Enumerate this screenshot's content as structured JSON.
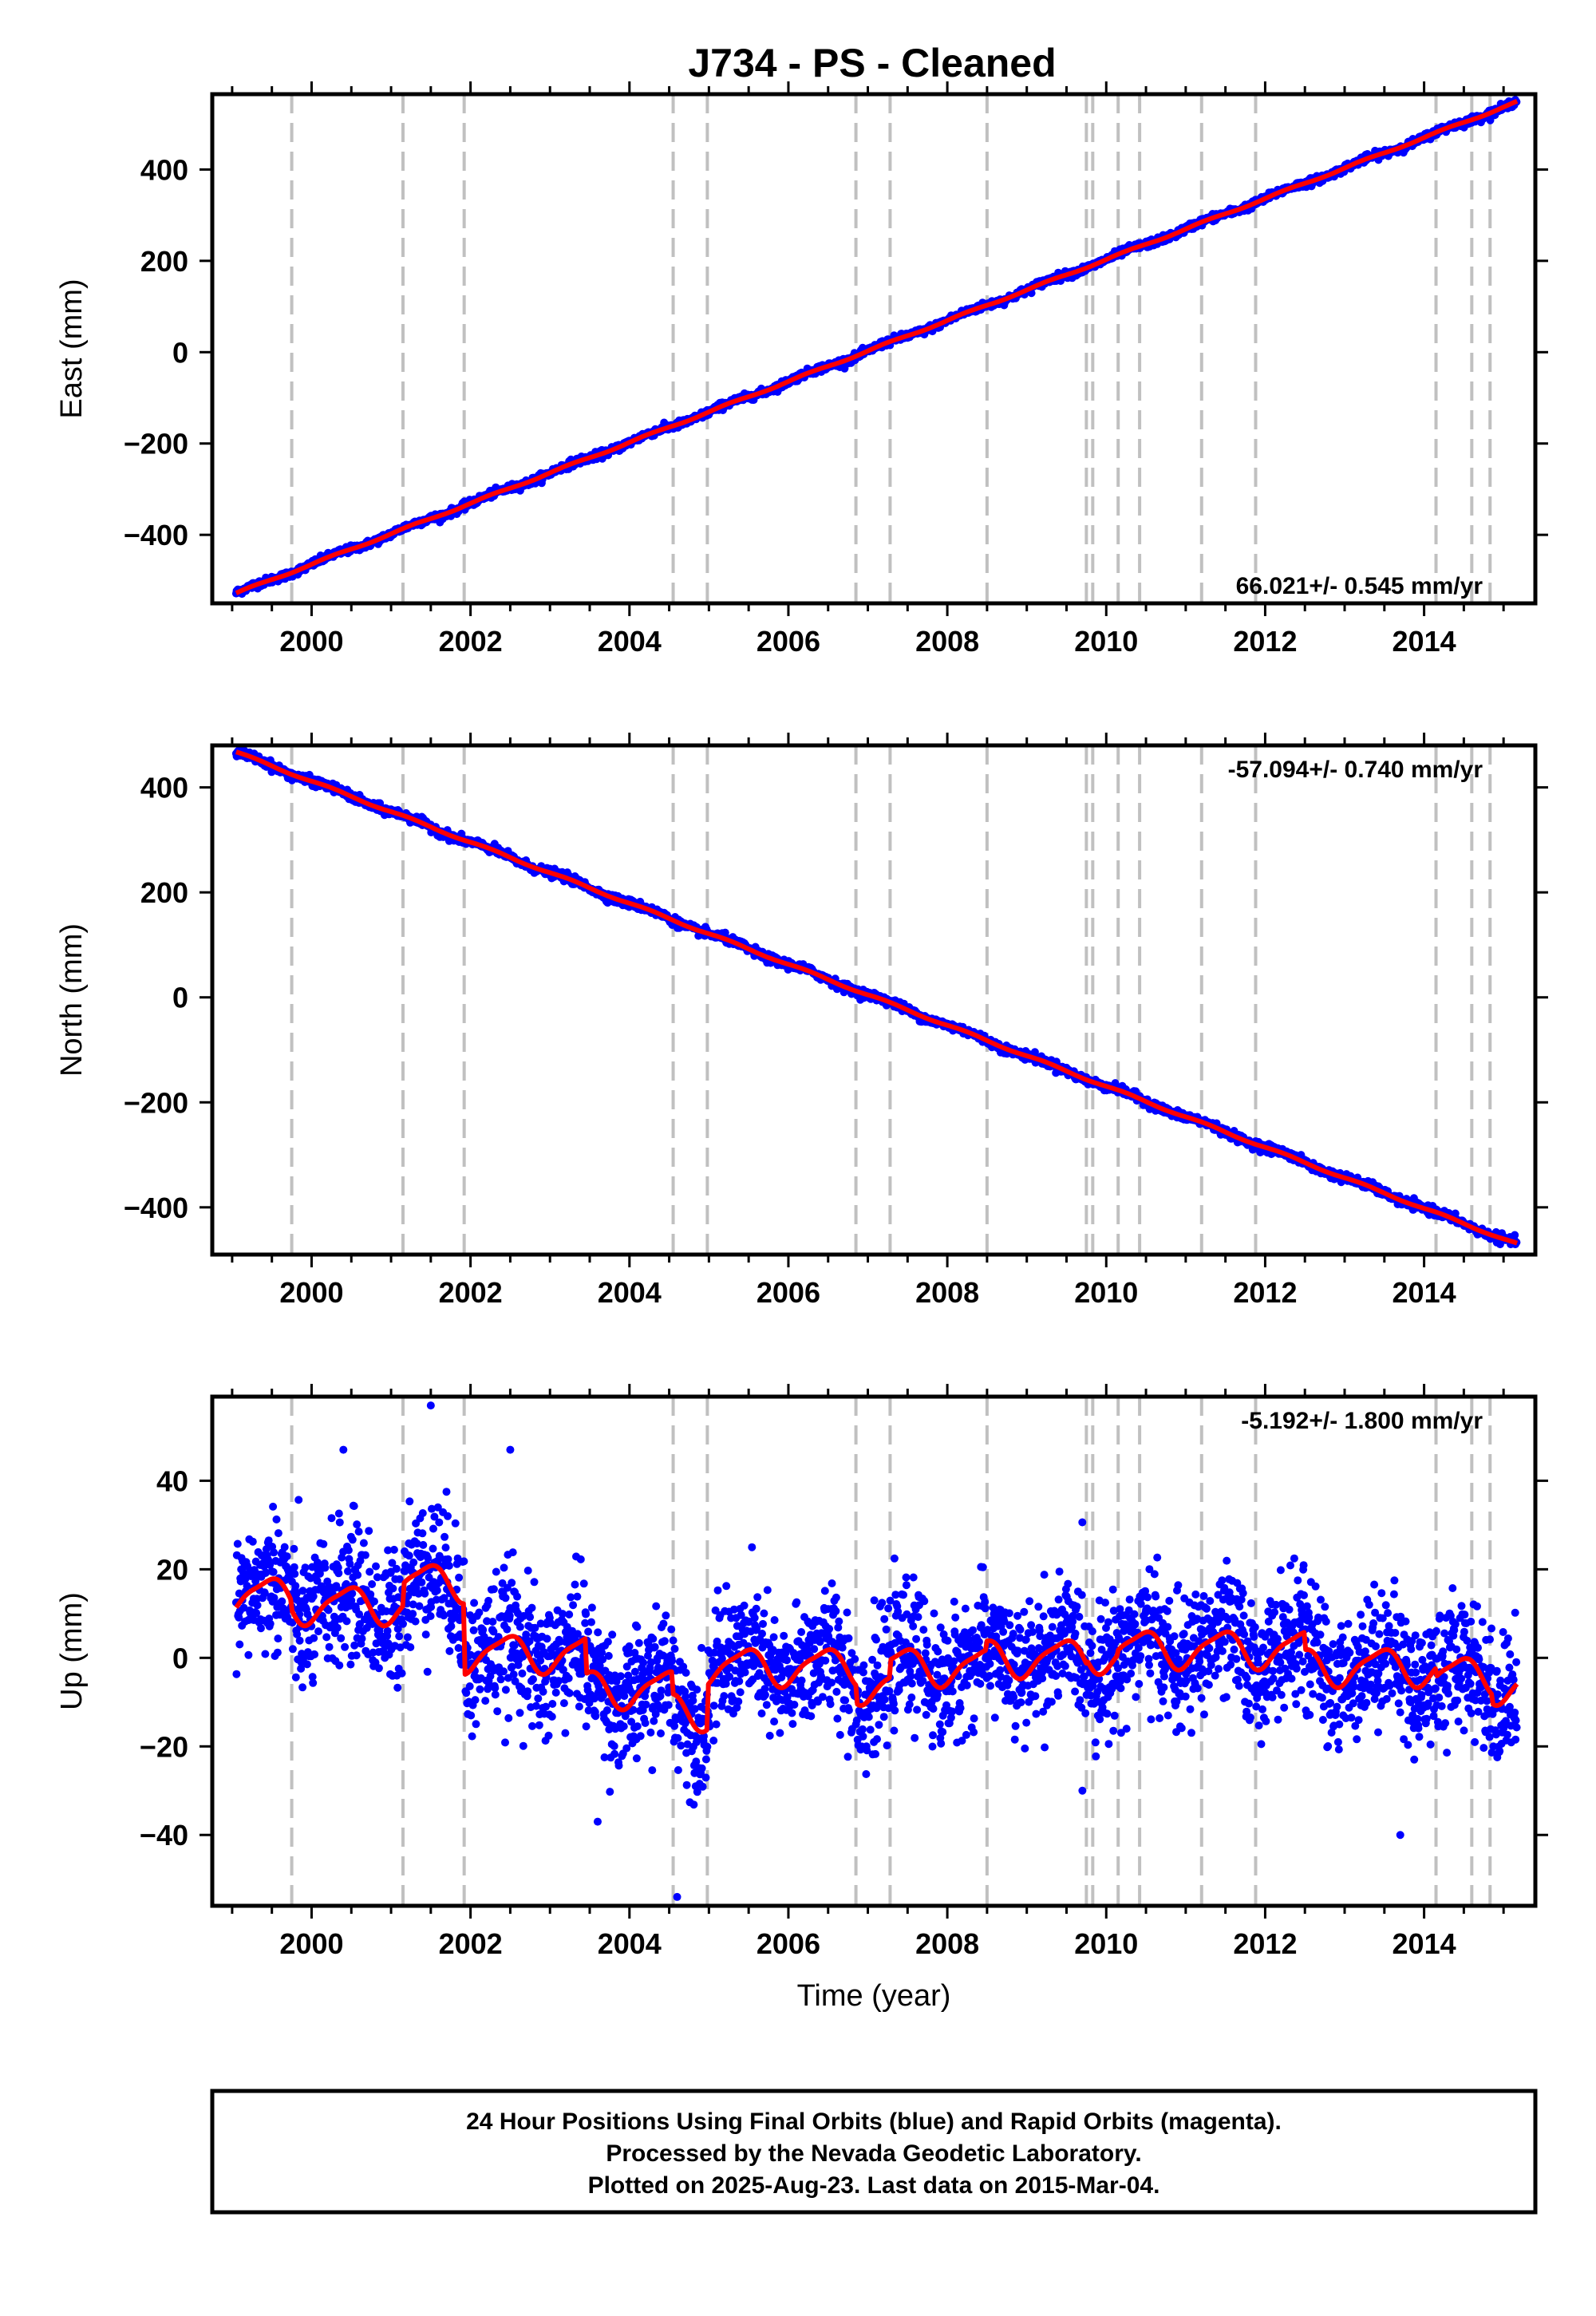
{
  "title": "J734  - PS - Cleaned",
  "x_axis_label": "Time (year)",
  "footer": {
    "lines": [
      "24 Hour Positions Using Final Orbits (blue) and Rapid Orbits (magenta).",
      "Processed by the Nevada Geodetic Laboratory.",
      "Plotted on 2025-Aug-23. Last data on 2015-Mar-04."
    ]
  },
  "colors": {
    "final_orbit_points": "#0000ff",
    "model_line": "#ff0000",
    "equipment_change_lines": "#c0c0c0",
    "frame": "#000000"
  },
  "chart_data": [
    {
      "type": "scatter",
      "panel": "east",
      "ylabel": "East (mm)",
      "xlim": [
        1998.75,
        2015.4
      ],
      "ylim": [
        -550,
        565
      ],
      "x_ticks": [
        2000,
        2002,
        2004,
        2006,
        2008,
        2010,
        2012,
        2014
      ],
      "y_ticks": [
        -400,
        -200,
        0,
        200,
        400
      ],
      "y_tick_labels": [
        "−400",
        "−200",
        "0",
        "200",
        "400"
      ],
      "rate_text": "66.021+/- 0.545 mm/yr",
      "rate_position": "bottom-right",
      "data_range": {
        "start": [
          1999.05,
          -528
        ],
        "end": [
          2015.17,
          548
        ]
      },
      "noise_mm": 4,
      "grid": false
    },
    {
      "type": "scatter",
      "panel": "north",
      "ylabel": "North (mm)",
      "xlim": [
        1998.75,
        2015.4
      ],
      "ylim": [
        -490,
        480
      ],
      "x_ticks": [
        2000,
        2002,
        2004,
        2006,
        2008,
        2010,
        2012,
        2014
      ],
      "y_ticks": [
        -400,
        -200,
        0,
        200,
        400
      ],
      "y_tick_labels": [
        "−400",
        "−200",
        "0",
        "200",
        "400"
      ],
      "rate_text": "-57.094+/- 0.740 mm/yr",
      "rate_position": "top-right",
      "data_range": {
        "start": [
          1999.05,
          467
        ],
        "end": [
          2015.17,
          -470
        ]
      },
      "noise_mm": 4,
      "grid": false
    },
    {
      "type": "scatter",
      "panel": "up",
      "ylabel": "Up (mm)",
      "xlim": [
        1998.75,
        2015.4
      ],
      "ylim": [
        -56,
        59
      ],
      "x_ticks": [
        2000,
        2002,
        2004,
        2006,
        2008,
        2010,
        2012,
        2014
      ],
      "y_ticks": [
        -40,
        -20,
        0,
        20,
        40
      ],
      "y_tick_labels": [
        "−40",
        "−20",
        "0",
        "20",
        "40"
      ],
      "rate_text": "-5.192+/- 1.800 mm/yr",
      "rate_position": "top-right",
      "grid": false,
      "segment_offsets": [
        {
          "from": 1999.05,
          "to": 1999.75,
          "offset": 14
        },
        {
          "from": 1999.75,
          "to": 2001.15,
          "offset": 12
        },
        {
          "from": 2001.15,
          "to": 2001.92,
          "offset": 17
        },
        {
          "from": 2001.92,
          "to": 2003.45,
          "offset": 1
        },
        {
          "from": 2003.45,
          "to": 2004.55,
          "offset": -7
        },
        {
          "from": 2004.55,
          "to": 2004.98,
          "offset": -12
        },
        {
          "from": 2004.98,
          "to": 2006.85,
          "offset": -2
        },
        {
          "from": 2006.85,
          "to": 2007.28,
          "offset": -6
        },
        {
          "from": 2007.28,
          "to": 2008.5,
          "offset": -2
        },
        {
          "from": 2008.5,
          "to": 2009.75,
          "offset": 0
        },
        {
          "from": 2009.75,
          "to": 2010.15,
          "offset": 1
        },
        {
          "from": 2010.15,
          "to": 2011.2,
          "offset": 2
        },
        {
          "from": 2011.2,
          "to": 2012.5,
          "offset": 2
        },
        {
          "from": 2012.5,
          "to": 2014.15,
          "offset": -2
        },
        {
          "from": 2014.15,
          "to": 2014.85,
          "offset": -4
        },
        {
          "from": 2014.85,
          "to": 2015.17,
          "offset": -6
        }
      ],
      "seasonal_amplitude_mm": 5,
      "noise_mm": 7,
      "outliers": [
        [
          2001.5,
          57
        ],
        [
          2004.6,
          -54
        ],
        [
          2000.4,
          47
        ],
        [
          2002.5,
          47
        ],
        [
          2013.7,
          -40
        ],
        [
          2009.7,
          -30
        ],
        [
          2003.6,
          -37
        ]
      ]
    }
  ],
  "equipment_change_years": [
    1999.75,
    2001.15,
    2001.92,
    2004.55,
    2004.98,
    2006.85,
    2007.28,
    2008.5,
    2009.75,
    2009.83,
    2010.15,
    2010.42,
    2011.2,
    2011.88,
    2014.15,
    2014.6,
    2014.83
  ]
}
